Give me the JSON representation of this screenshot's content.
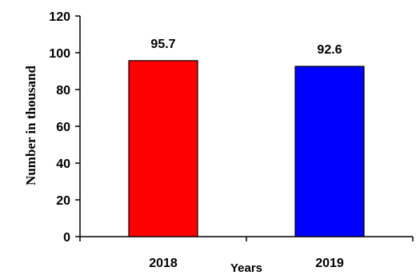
{
  "chart_data": {
    "type": "bar",
    "categories": [
      "2018",
      "2019"
    ],
    "values": [
      95.7,
      92.6
    ],
    "data_labels": [
      "95.7",
      "92.6"
    ],
    "colors": [
      "#ff0000",
      "#0000ff"
    ],
    "xlabel": "Years",
    "ylabel": "Number in  thousand",
    "ylim": [
      0,
      120
    ],
    "yticks": [
      0,
      20,
      40,
      60,
      80,
      100,
      120
    ],
    "grid": false,
    "legend": "none"
  }
}
